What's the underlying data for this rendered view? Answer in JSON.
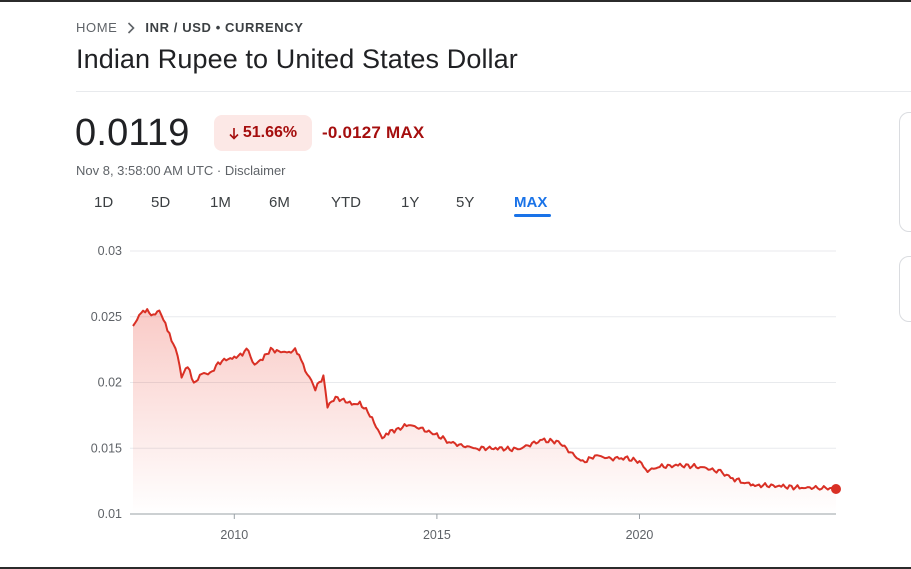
{
  "breadcrumb": {
    "home": "HOME",
    "current": "INR / USD • CURRENCY"
  },
  "title": "Indian Rupee to United States Dollar",
  "quote": {
    "price": "0.0119",
    "change_percent": "51.66%",
    "change_abs": "-0.0127 MAX",
    "timestamp": "Nov 8, 3:58:00 AM UTC · Disclaimer"
  },
  "tabs": [
    {
      "label": "1D",
      "active": false
    },
    {
      "label": "5D",
      "active": false
    },
    {
      "label": "1M",
      "active": false
    },
    {
      "label": "6M",
      "active": false
    },
    {
      "label": "YTD",
      "active": false
    },
    {
      "label": "1Y",
      "active": false
    },
    {
      "label": "5Y",
      "active": false
    },
    {
      "label": "MAX",
      "active": true
    }
  ],
  "colors": {
    "line": "#d93025",
    "negative": "#a50e0e",
    "negative_bg": "#fce8e6",
    "accent": "#1a73e8",
    "grid": "#e8eaed"
  },
  "icons": {
    "breadcrumb_separator": "chevron-right-icon",
    "change_direction": "arrow-down-icon"
  },
  "chart_data": {
    "type": "area",
    "ylim": [
      0.01,
      0.03
    ],
    "yticks": [
      "0.01",
      "0.015",
      "0.02",
      "0.025",
      "0.03"
    ],
    "xlim": [
      2007.5,
      2024.85
    ],
    "xticks": [
      {
        "label": "2010",
        "value": 2010
      },
      {
        "label": "2015",
        "value": 2015
      },
      {
        "label": "2020",
        "value": 2020
      }
    ],
    "grid": true,
    "series": [
      {
        "x": [
          2007.5,
          2007.7,
          2007.85,
          2008.0,
          2008.15,
          2008.3,
          2008.45,
          2008.6,
          2008.7,
          2008.85,
          2009.0,
          2009.2,
          2009.4,
          2009.6,
          2009.8,
          2010.0,
          2010.2,
          2010.3,
          2010.5,
          2010.7,
          2010.9,
          2011.1,
          2011.3,
          2011.5,
          2011.6,
          2011.75,
          2011.9,
          2012.0,
          2012.2,
          2012.3,
          2012.5,
          2012.7,
          2012.9,
          2013.1,
          2013.3,
          2013.5,
          2013.65,
          2013.8,
          2014.0,
          2014.3,
          2014.6,
          2015.0,
          2015.3,
          2015.6,
          2016.0,
          2016.5,
          2017.0,
          2017.3,
          2017.6,
          2018.0,
          2018.3,
          2018.6,
          2018.8,
          2019.0,
          2019.3,
          2019.6,
          2020.0,
          2020.2,
          2020.5,
          2021.0,
          2021.5,
          2022.0,
          2022.3,
          2022.6,
          2022.8,
          2023.0,
          2023.5,
          2024.0,
          2024.5,
          2024.85
        ],
        "y": [
          0.0243,
          0.0253,
          0.0254,
          0.0252,
          0.0254,
          0.0245,
          0.0233,
          0.022,
          0.0205,
          0.0212,
          0.0199,
          0.0207,
          0.0206,
          0.0215,
          0.0217,
          0.0219,
          0.0222,
          0.0226,
          0.0214,
          0.0218,
          0.0225,
          0.0224,
          0.0222,
          0.0225,
          0.0222,
          0.0208,
          0.0203,
          0.0195,
          0.0205,
          0.0182,
          0.0188,
          0.0187,
          0.0183,
          0.0184,
          0.0178,
          0.0166,
          0.0158,
          0.0162,
          0.0164,
          0.0168,
          0.0165,
          0.016,
          0.0155,
          0.0152,
          0.015,
          0.015,
          0.0149,
          0.0153,
          0.0156,
          0.0155,
          0.0147,
          0.0139,
          0.0143,
          0.0144,
          0.0142,
          0.0143,
          0.014,
          0.0133,
          0.0136,
          0.0137,
          0.0136,
          0.0132,
          0.0127,
          0.0124,
          0.0122,
          0.0122,
          0.0121,
          0.012,
          0.012,
          0.0119
        ]
      }
    ]
  }
}
